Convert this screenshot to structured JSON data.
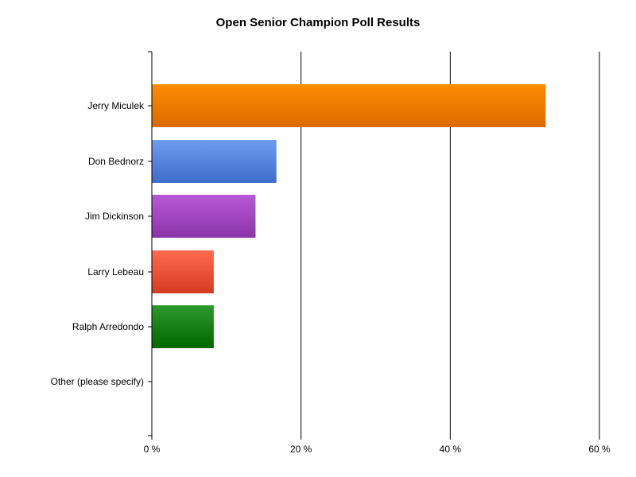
{
  "chart_data": {
    "type": "bar",
    "orientation": "horizontal",
    "title": "Open Senior Champion Poll Results",
    "xlabel": "",
    "ylabel": "",
    "categories": [
      "Jerry Miculek",
      "Don Bednorz",
      "Jim Dickinson",
      "Larry Lebeau",
      "Ralph Arredondo",
      "Other (please specify)"
    ],
    "values": [
      52.8,
      16.7,
      13.9,
      8.3,
      8.3,
      0
    ],
    "colors": [
      {
        "top": "#ff8c00",
        "bottom": "#db6a00"
      },
      {
        "top": "#6f9ced",
        "bottom": "#3e6ccb"
      },
      {
        "top": "#b859d6",
        "bottom": "#8a34a8"
      },
      {
        "top": "#ff6a4d",
        "bottom": "#d43c22"
      },
      {
        "top": "#2e9a2e",
        "bottom": "#006800"
      },
      {
        "top": "#888888",
        "bottom": "#666666"
      }
    ],
    "xlim": [
      0,
      60
    ],
    "x_ticks": [
      0,
      20,
      40,
      60
    ],
    "x_tick_labels": [
      "0 %",
      "20 %",
      "40 %",
      "60 %"
    ],
    "grid": true,
    "legend": "none"
  }
}
